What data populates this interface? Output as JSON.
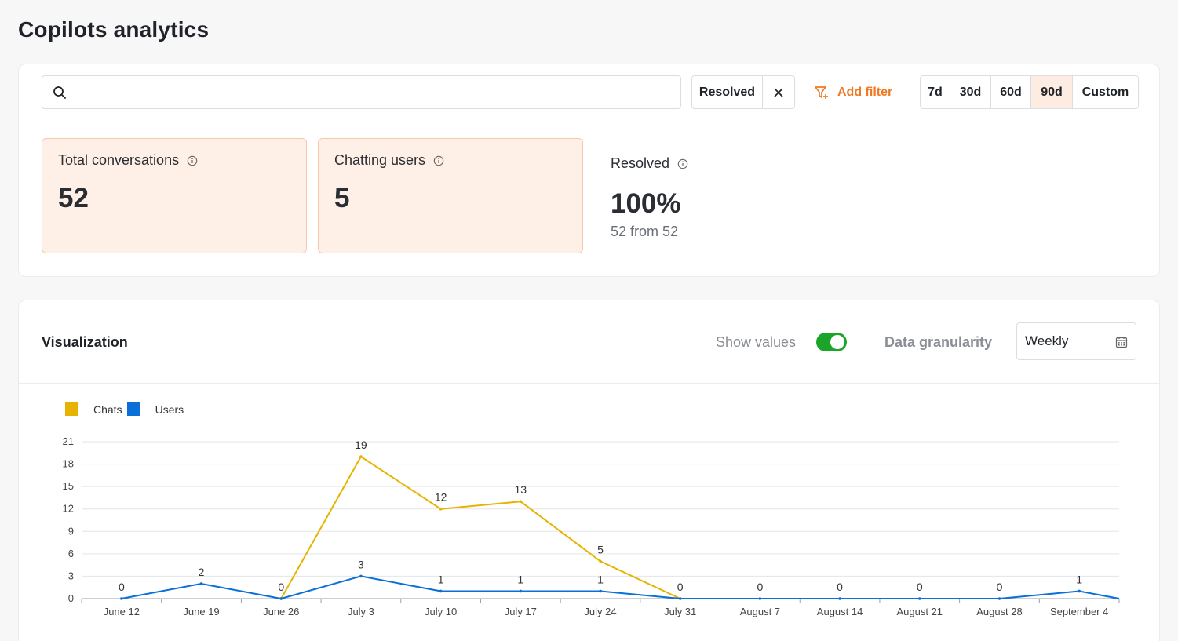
{
  "page": {
    "title": "Copilots analytics"
  },
  "filters": {
    "search_value": "",
    "search_placeholder": "",
    "active_chip": "Resolved",
    "add_filter_label": "Add filter",
    "ranges": [
      "7d",
      "30d",
      "60d",
      "90d",
      "Custom"
    ],
    "active_range": "90d"
  },
  "stats": {
    "total_conversations": {
      "label": "Total conversations",
      "value": "52"
    },
    "chatting_users": {
      "label": "Chatting users",
      "value": "5"
    },
    "resolved": {
      "label": "Resolved",
      "value": "100%",
      "sub": "52 from 52"
    }
  },
  "visualization": {
    "title": "Visualization",
    "show_values_label": "Show values",
    "show_values_on": true,
    "granularity_label": "Data granularity",
    "granularity_value": "Weekly"
  },
  "colors": {
    "chats": "#e6b400",
    "users": "#0a6fd6",
    "accent": "#f07a22",
    "toggle": "#1aa52a"
  },
  "chart_data": {
    "type": "line",
    "categories": [
      "June 12",
      "June 19",
      "June 26",
      "July 3",
      "July 10",
      "July 17",
      "July 24",
      "July 31",
      "August 7",
      "August 14",
      "August 21",
      "August 28",
      "September 4"
    ],
    "series": [
      {
        "name": "Chats",
        "values": [
          null,
          null,
          0,
          19,
          12,
          13,
          5,
          0,
          null,
          null,
          null,
          null,
          null
        ]
      },
      {
        "name": "Users",
        "values": [
          0,
          2,
          0,
          3,
          1,
          1,
          1,
          0,
          0,
          0,
          0,
          0,
          1
        ]
      }
    ],
    "yticks": [
      0,
      3,
      6,
      9,
      12,
      15,
      18,
      21
    ],
    "ylim": [
      0,
      21
    ],
    "legend": "top-left",
    "grid": true
  }
}
